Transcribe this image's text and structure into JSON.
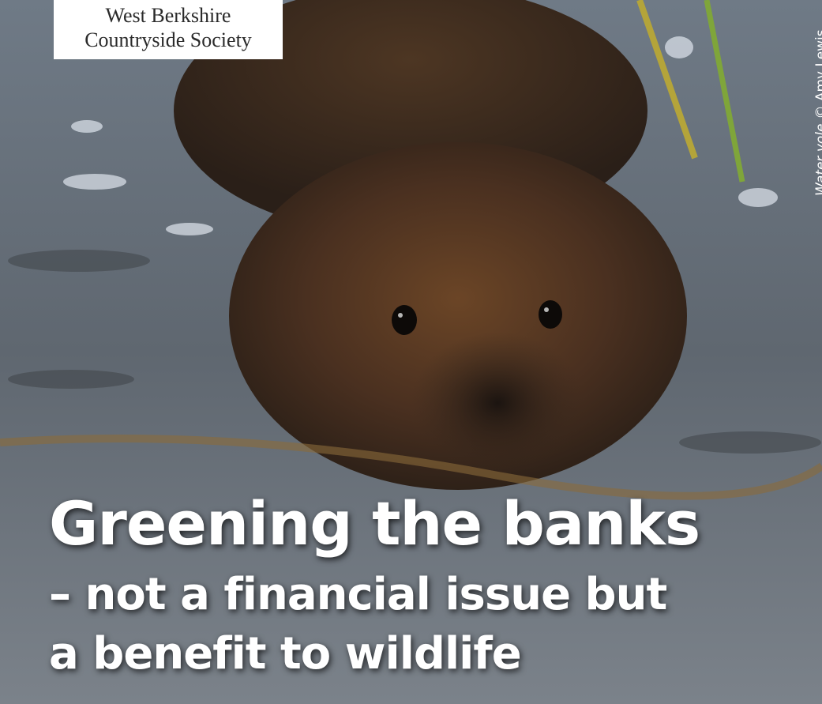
{
  "header": {
    "organization": [
      "West Berkshire",
      "Countryside Society"
    ]
  },
  "photo_credit": {
    "caption": "Water vole",
    "credit": "© Amy Lewis"
  },
  "headline": {
    "title": "Greening the banks",
    "subtitle": [
      "– not a financial issue but",
      "a benefit to wildlife"
    ]
  }
}
